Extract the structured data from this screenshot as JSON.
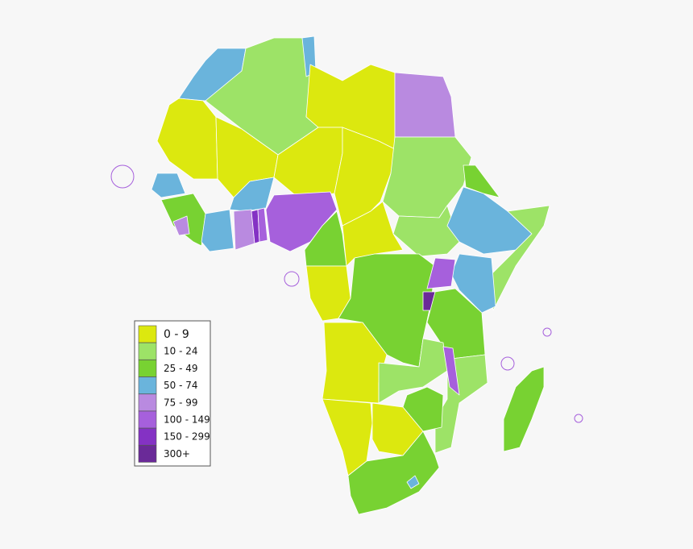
{
  "legend": {
    "items": [
      {
        "label": "0 - 9",
        "color": "#dce80f"
      },
      {
        "label": "10 - 24",
        "color": "#9de367"
      },
      {
        "label": "25 - 49",
        "color": "#78d232"
      },
      {
        "label": "50 - 74",
        "color": "#6ab4dc"
      },
      {
        "label": "75 - 99",
        "color": "#b98ae0"
      },
      {
        "label": "100 - 149",
        "color": "#a660dc"
      },
      {
        "label": "150 - 299",
        "color": "#8432c4"
      },
      {
        "label": "300+",
        "color": "#6a2a98"
      }
    ]
  }
}
